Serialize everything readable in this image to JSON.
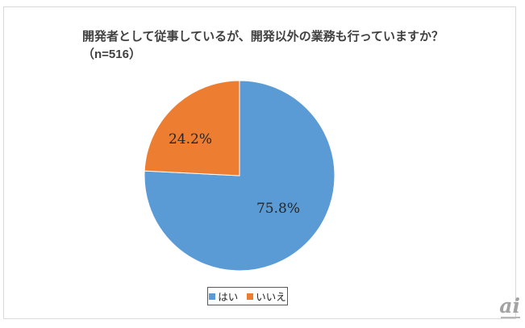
{
  "title": {
    "line1": "開発者として従事しているが、開発以外の業務も行っていますか？",
    "line2": "（n=516）"
  },
  "chart_data": {
    "type": "pie",
    "title": "開発者として従事しているが、開発以外の業務も行っていますか？（n=516）",
    "n": 516,
    "categories": [
      "はい",
      "いいえ"
    ],
    "values": [
      75.8,
      24.2
    ],
    "slices": [
      {
        "name": "yes",
        "label": "はい",
        "value": 75.8,
        "text": "75.8%",
        "color": "#5B9BD5"
      },
      {
        "name": "no",
        "label": "いいえ",
        "value": 24.2,
        "text": "24.2%",
        "color": "#ED7D31"
      }
    ],
    "start_angle_deg": 0,
    "direction": "clockwise",
    "legend": {
      "position": "bottom",
      "items": [
        {
          "label": "はい",
          "color": "#5B9BD5"
        },
        {
          "label": "いいえ",
          "color": "#ED7D31"
        }
      ]
    }
  },
  "watermark": {
    "text": "ai"
  }
}
